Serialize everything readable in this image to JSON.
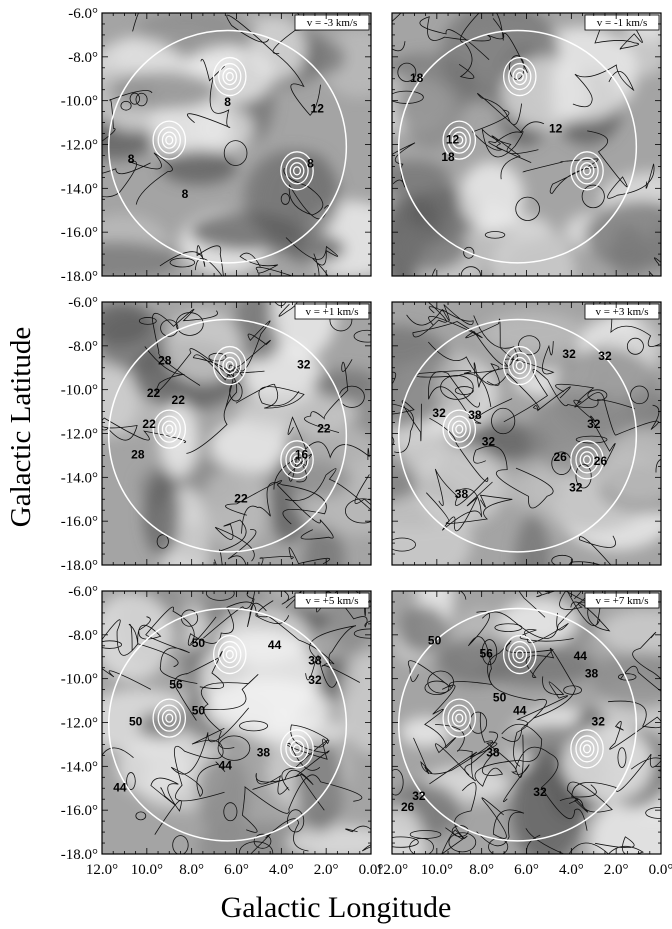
{
  "chart_data": {
    "type": "contour_map",
    "layout": "3x2 panel grid",
    "xlabel": "Galactic Longitude",
    "ylabel": "Galactic Latitude",
    "xlim": [
      12.0,
      0.0
    ],
    "ylim": [
      -18.0,
      -6.0
    ],
    "xticks": [
      12,
      10,
      8,
      6,
      4,
      2,
      0
    ],
    "yticks": [
      -6,
      -8,
      -10,
      -12,
      -14,
      -16,
      -18
    ],
    "xtick_labels": [
      "12.0°",
      "10.0°",
      "8.0°",
      "6.0°",
      "4.0°",
      "2.0°",
      "0.0°"
    ],
    "ytick_labels": [
      "-6.0°",
      "-8.0°",
      "-10.0°",
      "-12.0°",
      "-14.0°",
      "-16.0°",
      "-18.0°"
    ],
    "overlay_circle": {
      "center_l": 6.4,
      "center_b": -12.1,
      "radius_deg": 5.3
    },
    "white_contour_sources": [
      {
        "l": 6.3,
        "b": -8.9
      },
      {
        "l": 9.0,
        "b": -11.8
      },
      {
        "l": 3.3,
        "b": -13.2
      }
    ],
    "panels": [
      {
        "velocity_label": "v = -3 km/s",
        "contour_labels": [
          {
            "text": "8",
            "l": 6.4,
            "b": -10.1
          },
          {
            "text": "12",
            "l": 2.4,
            "b": -10.4
          },
          {
            "text": "8",
            "l": 10.7,
            "b": -12.7
          },
          {
            "text": "8",
            "l": 8.3,
            "b": -14.3
          },
          {
            "text": "8",
            "l": 2.7,
            "b": -12.9
          }
        ]
      },
      {
        "velocity_label": "v = -1 km/s",
        "contour_labels": [
          {
            "text": "18",
            "l": 10.9,
            "b": -9.0
          },
          {
            "text": "12",
            "l": 4.7,
            "b": -11.3
          },
          {
            "text": "12",
            "l": 9.3,
            "b": -11.8
          },
          {
            "text": "18",
            "l": 9.5,
            "b": -12.6
          }
        ]
      },
      {
        "velocity_label": "v = +1 km/s",
        "contour_labels": [
          {
            "text": "28",
            "l": 9.2,
            "b": -8.7
          },
          {
            "text": "32",
            "l": 3.0,
            "b": -8.9
          },
          {
            "text": "22",
            "l": 9.7,
            "b": -10.2
          },
          {
            "text": "22",
            "l": 8.6,
            "b": -10.5
          },
          {
            "text": "22",
            "l": 9.9,
            "b": -11.6
          },
          {
            "text": "28",
            "l": 10.4,
            "b": -13.0
          },
          {
            "text": "22",
            "l": 2.1,
            "b": -11.8
          },
          {
            "text": "16",
            "l": 3.1,
            "b": -13.0
          },
          {
            "text": "22",
            "l": 5.8,
            "b": -15.0
          }
        ]
      },
      {
        "velocity_label": "v = +3 km/s",
        "contour_labels": [
          {
            "text": "32",
            "l": 4.1,
            "b": -8.4
          },
          {
            "text": "32",
            "l": 2.5,
            "b": -8.5
          },
          {
            "text": "32",
            "l": 9.9,
            "b": -11.1
          },
          {
            "text": "38",
            "l": 8.3,
            "b": -11.2
          },
          {
            "text": "32",
            "l": 7.7,
            "b": -12.4
          },
          {
            "text": "32",
            "l": 3.0,
            "b": -11.6
          },
          {
            "text": "26",
            "l": 4.5,
            "b": -13.1
          },
          {
            "text": "26",
            "l": 2.7,
            "b": -13.3
          },
          {
            "text": "38",
            "l": 8.9,
            "b": -14.8
          },
          {
            "text": "32",
            "l": 3.8,
            "b": -14.5
          }
        ]
      },
      {
        "velocity_label": "v = +5 km/s",
        "contour_labels": [
          {
            "text": "50",
            "l": 7.7,
            "b": -8.4
          },
          {
            "text": "44",
            "l": 4.3,
            "b": -8.5
          },
          {
            "text": "38",
            "l": 2.5,
            "b": -9.2
          },
          {
            "text": "32",
            "l": 2.5,
            "b": -10.1
          },
          {
            "text": "56",
            "l": 8.7,
            "b": -10.3
          },
          {
            "text": "50",
            "l": 7.7,
            "b": -11.5
          },
          {
            "text": "50",
            "l": 10.5,
            "b": -12.0
          },
          {
            "text": "44",
            "l": 6.5,
            "b": -14.0
          },
          {
            "text": "44",
            "l": 11.2,
            "b": -15.0
          },
          {
            "text": "38",
            "l": 4.8,
            "b": -13.4
          }
        ]
      },
      {
        "velocity_label": "v = +7 km/s",
        "contour_labels": [
          {
            "text": "50",
            "l": 10.1,
            "b": -8.3
          },
          {
            "text": "56",
            "l": 7.8,
            "b": -8.9
          },
          {
            "text": "44",
            "l": 3.6,
            "b": -9.0
          },
          {
            "text": "38",
            "l": 3.1,
            "b": -9.8
          },
          {
            "text": "50",
            "l": 7.2,
            "b": -10.9
          },
          {
            "text": "44",
            "l": 6.3,
            "b": -11.5
          },
          {
            "text": "32",
            "l": 2.8,
            "b": -12.0
          },
          {
            "text": "38",
            "l": 7.5,
            "b": -13.4
          },
          {
            "text": "32",
            "l": 5.4,
            "b": -15.2
          },
          {
            "text": "26",
            "l": 11.3,
            "b": -15.9
          },
          {
            "text": "32",
            "l": 10.8,
            "b": -15.4
          }
        ]
      }
    ]
  }
}
